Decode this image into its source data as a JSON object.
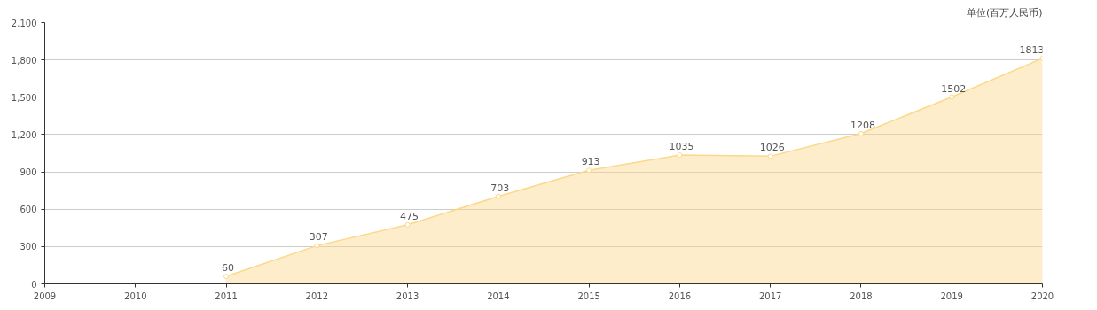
{
  "chart_data": {
    "type": "area",
    "annotations": [
      "单位(百万人民币)"
    ],
    "x": [
      2011,
      2012,
      2013,
      2014,
      2015,
      2016,
      2017,
      2018,
      2019,
      2020
    ],
    "series": [
      {
        "color": "#fcd88a",
        "values": [
          60,
          307,
          475,
          703,
          913,
          1035,
          1026,
          1208,
          1502,
          1813
        ]
      }
    ],
    "xlim": [
      2009,
      2020
    ],
    "xticks": [
      2009,
      2010,
      2011,
      2012,
      2013,
      2014,
      2015,
      2016,
      2017,
      2018,
      2019,
      2020
    ],
    "ylim": [
      0,
      2100
    ],
    "yticks": [
      0,
      300,
      600,
      900,
      {
        "value": 1200,
        "label": "1,200"
      },
      {
        "value": 1500,
        "label": "1,500"
      },
      {
        "value": 1800,
        "label": "1,800"
      },
      {
        "value": 2100,
        "label": "2,100"
      }
    ],
    "grid": "y",
    "marker": "circle",
    "data_labels": true
  }
}
